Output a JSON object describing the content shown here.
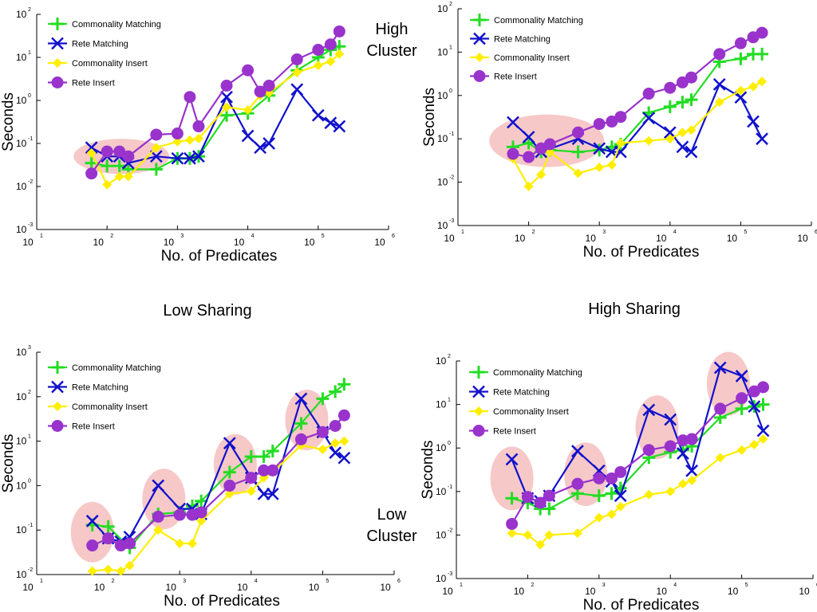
{
  "labels": {
    "high_cluster": [
      "High",
      "Cluster"
    ],
    "low_cluster": [
      "Low",
      "Cluster"
    ],
    "low_sharing": "Low Sharing",
    "high_sharing": "High Sharing"
  },
  "colors": {
    "commonality_matching": "#22dd22",
    "rete_matching": "#1111cc",
    "commonality_insert": "#ffee00",
    "rete_insert": "#9933cc",
    "highlight": "#f4b6b6"
  },
  "chart_data": [
    {
      "type": "line",
      "xlabel": "No. of Predicates",
      "ylabel": "Seconds",
      "xscale": "log",
      "yscale": "log",
      "xlim": [
        10,
        1000000
      ],
      "ylim": [
        0.001,
        100
      ],
      "xticks": [
        {
          "b": "10",
          "e": "1"
        },
        {
          "b": "10",
          "e": "2"
        },
        {
          "b": "10",
          "e": "3"
        },
        {
          "b": "10",
          "e": "4"
        },
        {
          "b": "10",
          "e": "5"
        },
        {
          "b": "10",
          "e": "6"
        }
      ],
      "yticks": [
        {
          "b": "10",
          "e": "-3"
        },
        {
          "b": "10",
          "e": "-2"
        },
        {
          "b": "10",
          "e": "-1"
        },
        {
          "b": "10",
          "e": "0"
        },
        {
          "b": "10",
          "e": "1"
        },
        {
          "b": "10",
          "e": "2"
        }
      ],
      "legend": "top-left",
      "highlights": [
        {
          "x": 160,
          "y": 0.05
        }
      ],
      "series": [
        {
          "name": "Commonality Matching",
          "marker": "plus",
          "x": [
            60,
            100,
            150,
            200,
            500,
            1000,
            1500,
            2000,
            5000,
            10000,
            20000,
            50000,
            100000,
            150000,
            200000
          ],
          "y": [
            0.035,
            0.03,
            0.03,
            0.025,
            0.025,
            0.045,
            0.045,
            0.05,
            0.45,
            0.5,
            1.3,
            5,
            10,
            15,
            18
          ]
        },
        {
          "name": "Rete Matching",
          "marker": "x",
          "x": [
            60,
            100,
            150,
            200,
            500,
            1000,
            1500,
            2000,
            5000,
            10000,
            15000,
            20000,
            50000,
            100000,
            150000,
            200000
          ],
          "y": [
            0.08,
            0.05,
            0.05,
            0.035,
            0.05,
            0.045,
            0.045,
            0.05,
            1.2,
            0.15,
            0.08,
            0.1,
            1.8,
            0.45,
            0.3,
            0.25
          ]
        },
        {
          "name": "Commonality Insert",
          "marker": "diamond",
          "x": [
            60,
            100,
            150,
            200,
            500,
            1000,
            1500,
            2000,
            5000,
            10000,
            15000,
            20000,
            50000,
            100000,
            150000,
            200000
          ],
          "y": [
            0.06,
            0.011,
            0.017,
            0.017,
            0.08,
            0.11,
            0.12,
            0.13,
            0.7,
            0.6,
            1.3,
            1.5,
            4.5,
            6.5,
            8,
            12
          ]
        },
        {
          "name": "Rete Insert",
          "marker": "circle",
          "x": [
            60,
            100,
            150,
            200,
            500,
            1000,
            1500,
            2000,
            5000,
            10000,
            15000,
            20000,
            50000,
            100000,
            150000,
            200000
          ],
          "y": [
            0.02,
            0.065,
            0.065,
            0.05,
            0.16,
            0.17,
            1.2,
            0.25,
            2.2,
            5,
            1.6,
            2.2,
            9,
            15,
            20,
            40
          ]
        }
      ]
    },
    {
      "type": "line",
      "xlabel": "No. of Predicates",
      "ylabel": "Seconds",
      "xscale": "log",
      "yscale": "log",
      "xlim": [
        10,
        1000000
      ],
      "ylim": [
        0.001,
        100
      ],
      "xticks": [
        {
          "b": "10",
          "e": "1"
        },
        {
          "b": "10",
          "e": "2"
        },
        {
          "b": "10",
          "e": "3"
        },
        {
          "b": "10",
          "e": "4"
        },
        {
          "b": "10",
          "e": "5"
        },
        {
          "b": "10",
          "e": "6"
        }
      ],
      "yticks": [
        {
          "b": "10",
          "e": "-3"
        },
        {
          "b": "10",
          "e": "-2"
        },
        {
          "b": "10",
          "e": "-1"
        },
        {
          "b": "10",
          "e": "0"
        },
        {
          "b": "10",
          "e": "1"
        },
        {
          "b": "10",
          "e": "2"
        }
      ],
      "legend": "top-left",
      "highlights": [
        {
          "x": 180,
          "y": 0.09
        }
      ],
      "series": [
        {
          "name": "Commonality Matching",
          "marker": "plus",
          "x": [
            60,
            100,
            150,
            200,
            500,
            1000,
            1500,
            2000,
            5000,
            10000,
            15000,
            20000,
            50000,
            100000,
            150000,
            200000
          ],
          "y": [
            0.065,
            0.08,
            0.05,
            0.055,
            0.05,
            0.055,
            0.065,
            0.075,
            0.4,
            0.55,
            0.7,
            0.8,
            6,
            7,
            9,
            9
          ]
        },
        {
          "name": "Rete Matching",
          "marker": "x",
          "x": [
            60,
            100,
            150,
            500,
            1000,
            1500,
            2000,
            5000,
            10000,
            15000,
            20000,
            50000,
            100000,
            150000,
            200000
          ],
          "y": [
            0.24,
            0.11,
            0.05,
            0.1,
            0.06,
            0.05,
            0.05,
            0.3,
            0.14,
            0.065,
            0.05,
            1.8,
            0.9,
            0.25,
            0.1
          ]
        },
        {
          "name": "Commonality Insert",
          "marker": "diamond",
          "x": [
            60,
            100,
            150,
            200,
            500,
            1000,
            1500,
            2000,
            5000,
            10000,
            15000,
            20000,
            50000,
            100000,
            150000,
            200000
          ],
          "y": [
            0.035,
            0.008,
            0.015,
            0.05,
            0.016,
            0.022,
            0.025,
            0.08,
            0.09,
            0.1,
            0.14,
            0.16,
            0.7,
            1.3,
            1.6,
            2.1
          ]
        },
        {
          "name": "Rete Insert",
          "marker": "circle",
          "x": [
            60,
            100,
            150,
            200,
            500,
            1000,
            1500,
            2000,
            5000,
            10000,
            15000,
            20000,
            50000,
            100000,
            150000,
            200000
          ],
          "y": [
            0.045,
            0.038,
            0.06,
            0.075,
            0.14,
            0.22,
            0.25,
            0.32,
            1.1,
            1.5,
            2,
            2.6,
            9,
            16,
            22,
            28
          ]
        }
      ]
    },
    {
      "type": "line",
      "xlabel": "No. of Predicates",
      "ylabel": "Seconds",
      "xscale": "log",
      "yscale": "log",
      "xlim": [
        10,
        1000000
      ],
      "ylim": [
        0.01,
        1000
      ],
      "xticks": [
        {
          "b": "10",
          "e": "1"
        },
        {
          "b": "10",
          "e": "2"
        },
        {
          "b": "10",
          "e": "3"
        },
        {
          "b": "10",
          "e": "4"
        },
        {
          "b": "10",
          "e": "5"
        },
        {
          "b": "10",
          "e": "6"
        }
      ],
      "yticks": [
        {
          "b": "10",
          "e": "-2"
        },
        {
          "b": "10",
          "e": "-1"
        },
        {
          "b": "10",
          "e": "0"
        },
        {
          "b": "10",
          "e": "1"
        },
        {
          "b": "10",
          "e": "2"
        },
        {
          "b": "10",
          "e": "3"
        }
      ],
      "legend": "top-left",
      "highlights": [
        {
          "x": 60,
          "y": 0.09
        },
        {
          "x": 600,
          "y": 0.5
        },
        {
          "x": 6000,
          "y": 3
        },
        {
          "x": 60000,
          "y": 30
        }
      ],
      "series": [
        {
          "name": "Commonality Matching",
          "marker": "plus",
          "x": [
            60,
            100,
            200,
            500,
            1000,
            1500,
            2000,
            5000,
            10000,
            15000,
            20000,
            50000,
            100000,
            150000,
            200000
          ],
          "y": [
            0.13,
            0.12,
            0.04,
            0.23,
            0.25,
            0.35,
            0.45,
            2,
            4.5,
            4.5,
            6,
            25,
            90,
            130,
            190
          ]
        },
        {
          "name": "Rete Matching",
          "marker": "x",
          "x": [
            60,
            100,
            150,
            200,
            500,
            1000,
            1500,
            2000,
            5000,
            10000,
            15000,
            20000,
            50000,
            100000,
            150000,
            200000
          ],
          "y": [
            0.16,
            0.065,
            0.055,
            0.07,
            1,
            0.3,
            0.3,
            0.23,
            9,
            1.5,
            0.65,
            0.65,
            90,
            16,
            5.5,
            4.2
          ]
        },
        {
          "name": "Commonality Insert",
          "marker": "diamond",
          "x": [
            60,
            100,
            150,
            200,
            500,
            1000,
            1500,
            2000,
            5000,
            10000,
            15000,
            20000,
            50000,
            100000,
            150000,
            200000
          ],
          "y": [
            0.012,
            0.013,
            0.012,
            0.016,
            0.1,
            0.05,
            0.05,
            0.16,
            0.65,
            0.75,
            1.5,
            2,
            8,
            6.5,
            9,
            10
          ]
        },
        {
          "name": "Rete Insert",
          "marker": "circle",
          "x": [
            60,
            100,
            150,
            200,
            500,
            1000,
            1500,
            2000,
            5000,
            10000,
            15000,
            20000,
            50000,
            100000,
            150000,
            200000
          ],
          "y": [
            0.045,
            0.065,
            0.045,
            0.05,
            0.2,
            0.22,
            0.22,
            0.25,
            1,
            1.5,
            2.2,
            2.2,
            11,
            16,
            22,
            38
          ]
        }
      ]
    },
    {
      "type": "line",
      "xlabel": "No. of Predicates",
      "ylabel": "Seconds",
      "xscale": "log",
      "yscale": "log",
      "xlim": [
        10,
        1000000
      ],
      "ylim": [
        0.001,
        100
      ],
      "xticks": [
        {
          "b": "10",
          "e": "1"
        },
        {
          "b": "10",
          "e": "2"
        },
        {
          "b": "10",
          "e": "3"
        },
        {
          "b": "10",
          "e": "4"
        },
        {
          "b": "10",
          "e": "5"
        },
        {
          "b": "10",
          "e": "6"
        }
      ],
      "yticks": [
        {
          "b": "10",
          "e": "-3"
        },
        {
          "b": "10",
          "e": "-2"
        },
        {
          "b": "10",
          "e": "-1"
        },
        {
          "b": "10",
          "e": "0"
        },
        {
          "b": "10",
          "e": "1"
        },
        {
          "b": "10",
          "e": "2"
        }
      ],
      "legend": "top-left",
      "highlights": [
        {
          "x": 60,
          "y": 0.2
        },
        {
          "x": 650,
          "y": 0.25
        },
        {
          "x": 6500,
          "y": 3
        },
        {
          "x": 65000,
          "y": 30
        }
      ],
      "series": [
        {
          "name": "Commonality Matching",
          "marker": "plus",
          "x": [
            60,
            100,
            150,
            200,
            500,
            1000,
            1500,
            2000,
            5000,
            10000,
            15000,
            20000,
            50000,
            100000,
            150000,
            200000
          ],
          "y": [
            0.07,
            0.055,
            0.04,
            0.04,
            0.09,
            0.08,
            0.09,
            0.12,
            0.6,
            0.8,
            0.9,
            1.1,
            5,
            8,
            9,
            10
          ]
        },
        {
          "name": "Rete Matching",
          "marker": "x",
          "x": [
            60,
            100,
            150,
            200,
            500,
            1000,
            1500,
            2000,
            5000,
            10000,
            15000,
            20000,
            50000,
            100000,
            150000,
            200000
          ],
          "y": [
            0.55,
            0.07,
            0.06,
            0.08,
            0.85,
            0.3,
            0.17,
            0.08,
            7.5,
            4.5,
            0.75,
            0.3,
            70,
            45,
            9,
            2.5
          ]
        },
        {
          "name": "Commonality Insert",
          "marker": "diamond",
          "x": [
            60,
            100,
            150,
            200,
            500,
            1000,
            1500,
            2000,
            5000,
            10000,
            15000,
            20000,
            50000,
            100000,
            150000,
            200000
          ],
          "y": [
            0.011,
            0.01,
            0.006,
            0.01,
            0.011,
            0.025,
            0.03,
            0.045,
            0.085,
            0.1,
            0.15,
            0.18,
            0.6,
            0.9,
            1.2,
            1.6
          ]
        },
        {
          "name": "Rete Insert",
          "marker": "circle",
          "x": [
            60,
            100,
            150,
            200,
            500,
            1000,
            1500,
            2000,
            5000,
            10000,
            15000,
            20000,
            50000,
            100000,
            150000,
            200000
          ],
          "y": [
            0.018,
            0.075,
            0.055,
            0.08,
            0.15,
            0.2,
            0.2,
            0.28,
            0.9,
            1.1,
            1.5,
            1.6,
            8,
            14,
            20,
            25
          ]
        }
      ]
    }
  ]
}
